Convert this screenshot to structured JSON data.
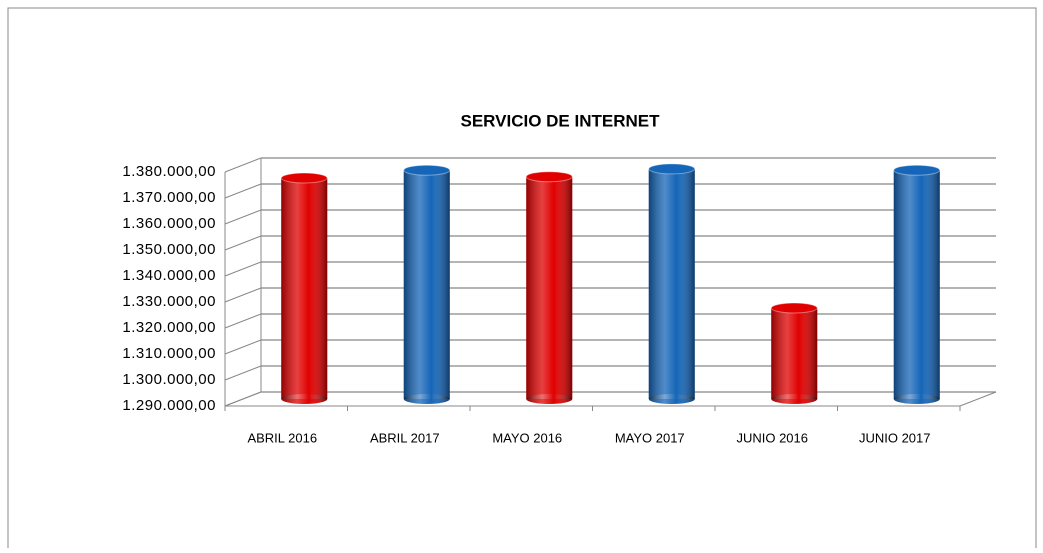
{
  "chart_data": {
    "type": "bar3d",
    "title": "SERVICIO DE INTERNET",
    "categories": [
      "ABRIL 2016",
      "ABRIL  2017",
      "MAYO 2016",
      "MAYO 2017",
      "JUNIO 2016",
      "JUNIO 2017"
    ],
    "values": [
      1375000,
      1378000,
      1375500,
      1378500,
      1325000,
      1378000
    ],
    "colors": [
      "#e00000",
      "#1565b8",
      "#e00000",
      "#1565b8",
      "#e00000",
      "#1565b8"
    ],
    "ylim": [
      1290000,
      1380000
    ],
    "yticks": [
      {
        "value": 1290000,
        "label": "1.290.000,00"
      },
      {
        "value": 1300000,
        "label": "1.300.000,00"
      },
      {
        "value": 1310000,
        "label": "1.310.000,00"
      },
      {
        "value": 1320000,
        "label": "1.320.000,00"
      },
      {
        "value": 1330000,
        "label": "1.330.000,00"
      },
      {
        "value": 1340000,
        "label": "1.340.000,00"
      },
      {
        "value": 1350000,
        "label": "1.350.000,00"
      },
      {
        "value": 1360000,
        "label": "1.360.000,00"
      },
      {
        "value": 1370000,
        "label": "1.370.000,00"
      },
      {
        "value": 1380000,
        "label": "1.380.000,00"
      }
    ],
    "grid": true
  }
}
